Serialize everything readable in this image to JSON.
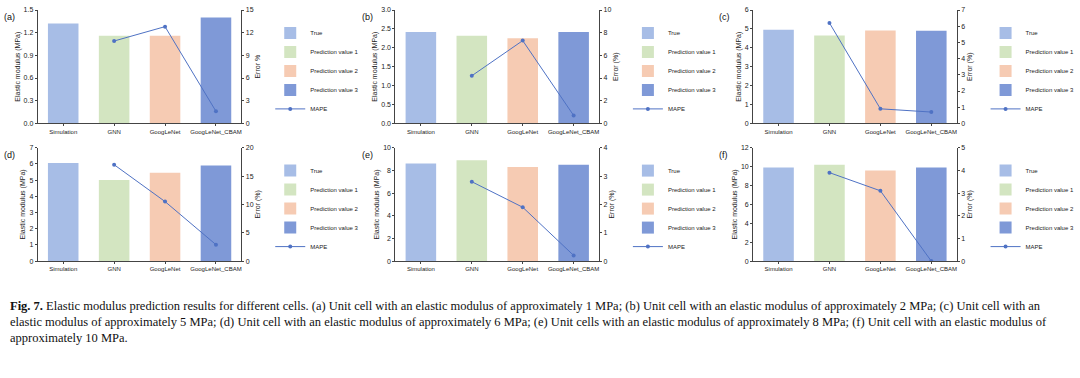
{
  "caption": {
    "label": "Fig. 7.",
    "text": "Elastic modulus prediction results for different cells. (a) Unit cell with an elastic modulus of approximately 1 MPa; (b) Unit cell with an elastic modulus of approximately 2 MPa; (c) Unit cell with an elastic modulus of approximately 5 MPa; (d) Unit cell with an elastic modulus of approximately 6 MPa; (e) Unit cells with an elastic modulus of approximately 8 MPa; (f) Unit cell with an elastic modulus of approximately 10 MPa."
  },
  "chart_data": [
    {
      "type": "bar",
      "label": "(a)",
      "y_title": "Elastic modulus (MPa)",
      "y2_title": "Error %",
      "legend": "right",
      "categories": [
        "Simulation",
        "GNN",
        "GoogLeNet",
        "GoogLeNet_CBAM"
      ],
      "ylim": [
        0,
        1.5
      ],
      "yticks": [
        {
          "value": 0,
          "label": "0.0"
        },
        0.3,
        0.6,
        0.9,
        1.2,
        1.5
      ],
      "y2lim": [
        0,
        15
      ],
      "y2ticks": [
        0,
        3,
        6,
        9,
        12,
        15
      ],
      "series": [
        {
          "name": "True",
          "type": "bar",
          "color": "#a7bde6",
          "values": [
            1.32,
            null,
            null,
            null
          ]
        },
        {
          "name": "Prediction value 1",
          "type": "bar",
          "color": "#d3e5c1",
          "values": [
            null,
            1.16,
            null,
            null
          ]
        },
        {
          "name": "Prediction value 2",
          "type": "bar",
          "color": "#f6cbb3",
          "values": [
            null,
            null,
            1.16,
            null
          ]
        },
        {
          "name": "Prediction value 3",
          "type": "bar",
          "color": "#7f99d7",
          "values": [
            null,
            null,
            null,
            1.4
          ]
        },
        {
          "name": "MAPE",
          "type": "line",
          "axis": "y2",
          "color": "#4f72c4",
          "marker": "circle",
          "line_style": "solid",
          "values": [
            null,
            10.9,
            12.8,
            1.6
          ]
        }
      ]
    },
    {
      "type": "bar",
      "label": "(b)",
      "y_title": "Elastic modulus (MPa)",
      "y2_title": "Error (%)",
      "legend": "right",
      "categories": [
        "Simulation",
        "GNN",
        "GoogLeNet",
        "GoogLeNet_CBAM"
      ],
      "ylim": [
        0,
        3
      ],
      "yticks": [
        {
          "value": 0,
          "label": "0.0"
        },
        0.5,
        {
          "value": 1,
          "label": "1.0"
        },
        1.5,
        {
          "value": 2,
          "label": "2.0"
        },
        2.5,
        {
          "value": 3,
          "label": "3.0"
        }
      ],
      "y2lim": [
        0,
        10
      ],
      "y2ticks": [
        0,
        2,
        4,
        6,
        8,
        10
      ],
      "series": [
        {
          "name": "True",
          "type": "bar",
          "color": "#a7bde6",
          "values": [
            2.42,
            null,
            null,
            null
          ]
        },
        {
          "name": "Prediction value 1",
          "type": "bar",
          "color": "#d3e5c1",
          "values": [
            null,
            2.32,
            null,
            null
          ]
        },
        {
          "name": "Prediction value 2",
          "type": "bar",
          "color": "#f6cbb3",
          "values": [
            null,
            null,
            2.25,
            null
          ]
        },
        {
          "name": "Prediction value 3",
          "type": "bar",
          "color": "#7f99d7",
          "values": [
            null,
            null,
            null,
            2.42
          ]
        },
        {
          "name": "MAPE",
          "type": "line",
          "axis": "y2",
          "color": "#4f72c4",
          "marker": "circle",
          "line_style": "solid",
          "values": [
            null,
            4.2,
            7.3,
            0.7
          ]
        }
      ]
    },
    {
      "type": "bar",
      "label": "(c)",
      "y_title": "Elastic modulus (MPa)",
      "y2_title": "Error (%)",
      "legend": "right",
      "categories": [
        "Simulation",
        "GNN",
        "GoogLeNet",
        "GoogLeNet_CBAM"
      ],
      "ylim": [
        0,
        6
      ],
      "yticks": [
        0,
        1,
        2,
        3,
        4,
        5,
        6
      ],
      "y2lim": [
        0,
        7
      ],
      "y2ticks": [
        0,
        1,
        2,
        3,
        4,
        5,
        6,
        7
      ],
      "series": [
        {
          "name": "True",
          "type": "bar",
          "color": "#a7bde6",
          "values": [
            4.95,
            null,
            null,
            null
          ]
        },
        {
          "name": "Prediction value 1",
          "type": "bar",
          "color": "#d3e5c1",
          "values": [
            null,
            4.65,
            null,
            null
          ]
        },
        {
          "name": "Prediction value 2",
          "type": "bar",
          "color": "#f6cbb3",
          "values": [
            null,
            null,
            4.92,
            null
          ]
        },
        {
          "name": "Prediction value 3",
          "type": "bar",
          "color": "#7f99d7",
          "values": [
            null,
            null,
            null,
            4.9
          ]
        },
        {
          "name": "MAPE",
          "type": "line",
          "axis": "y2",
          "color": "#4f72c4",
          "marker": "circle",
          "line_style": "solid",
          "values": [
            null,
            6.2,
            0.9,
            0.7
          ]
        }
      ]
    },
    {
      "type": "bar",
      "label": "(d)",
      "y_title": "Elastic modulus (MPa)",
      "y2_title": "Error (%)",
      "legend": "right",
      "categories": [
        "Simulation",
        "GNN",
        "GoogLeNet",
        "GoogLeNet_CBAM"
      ],
      "ylim": [
        0,
        7
      ],
      "yticks": [
        0,
        1,
        2,
        3,
        4,
        5,
        6,
        7
      ],
      "y2lim": [
        0,
        20
      ],
      "y2ticks": [
        0,
        5,
        10,
        15,
        20
      ],
      "series": [
        {
          "name": "True",
          "type": "bar",
          "color": "#a7bde6",
          "values": [
            6.05,
            null,
            null,
            null
          ]
        },
        {
          "name": "Prediction value 1",
          "type": "bar",
          "color": "#d3e5c1",
          "values": [
            null,
            5.0,
            null,
            null
          ]
        },
        {
          "name": "Prediction value 2",
          "type": "bar",
          "color": "#f6cbb3",
          "values": [
            null,
            null,
            5.45,
            null
          ]
        },
        {
          "name": "Prediction value 3",
          "type": "bar",
          "color": "#7f99d7",
          "values": [
            null,
            null,
            null,
            5.9
          ]
        },
        {
          "name": "MAPE",
          "type": "line",
          "axis": "y2",
          "color": "#4f72c4",
          "marker": "circle",
          "line_style": "solid",
          "values": [
            null,
            17,
            10.5,
            2.9
          ]
        }
      ]
    },
    {
      "type": "bar",
      "label": "(e)",
      "y_title": "Elastic modulus (MPa)",
      "y2_title": "Error (%)",
      "legend": "right",
      "categories": [
        "Simulation",
        "GNN",
        "GoogLeNet",
        "GoogLeNet_CBAM"
      ],
      "ylim": [
        0,
        10
      ],
      "yticks": [
        0,
        2,
        4,
        6,
        8,
        10
      ],
      "y2lim": [
        0,
        4
      ],
      "y2ticks": [
        0,
        1,
        2,
        3,
        4
      ],
      "series": [
        {
          "name": "True",
          "type": "bar",
          "color": "#a7bde6",
          "values": [
            8.6,
            null,
            null,
            null
          ]
        },
        {
          "name": "Prediction value 1",
          "type": "bar",
          "color": "#d3e5c1",
          "values": [
            null,
            8.9,
            null,
            null
          ]
        },
        {
          "name": "Prediction value 2",
          "type": "bar",
          "color": "#f6cbb3",
          "values": [
            null,
            null,
            8.3,
            null
          ]
        },
        {
          "name": "Prediction value 3",
          "type": "bar",
          "color": "#7f99d7",
          "values": [
            null,
            null,
            null,
            8.5
          ]
        },
        {
          "name": "MAPE",
          "type": "line",
          "axis": "y2",
          "color": "#4f72c4",
          "marker": "circle",
          "line_style": "solid",
          "values": [
            null,
            2.8,
            1.9,
            0.2
          ]
        }
      ]
    },
    {
      "type": "bar",
      "label": "(f)",
      "y_title": "Elastic modulus (MPa)",
      "y2_title": "Error (%)",
      "legend": "right",
      "categories": [
        "Simulation",
        "GNN",
        "GoogLeNet",
        "GoogLeNet_CBAM"
      ],
      "ylim": [
        0,
        12
      ],
      "yticks": [
        0,
        2,
        4,
        6,
        8,
        10,
        12
      ],
      "y2lim": [
        0,
        5
      ],
      "y2ticks": [
        0,
        1,
        2,
        3,
        4,
        5
      ],
      "series": [
        {
          "name": "True",
          "type": "bar",
          "color": "#a7bde6",
          "values": [
            9.9,
            null,
            null,
            null
          ]
        },
        {
          "name": "Prediction value 1",
          "type": "bar",
          "color": "#d3e5c1",
          "values": [
            null,
            10.2,
            null,
            null
          ]
        },
        {
          "name": "Prediction value 2",
          "type": "bar",
          "color": "#f6cbb3",
          "values": [
            null,
            null,
            9.6,
            null
          ]
        },
        {
          "name": "Prediction value 3",
          "type": "bar",
          "color": "#7f99d7",
          "values": [
            null,
            null,
            null,
            9.9
          ]
        },
        {
          "name": "MAPE",
          "type": "line",
          "axis": "y2",
          "color": "#4f72c4",
          "marker": "circle",
          "line_style": "solid",
          "values": [
            null,
            3.9,
            3.1,
            0.0
          ]
        }
      ]
    }
  ]
}
